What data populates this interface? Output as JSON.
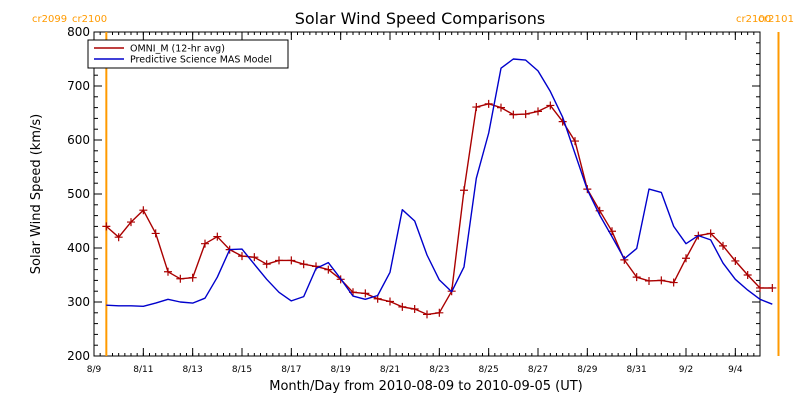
{
  "chart_data": {
    "type": "line",
    "title": "Solar Wind Speed Comparisons",
    "xlabel": "Month/Day from 2010-08-09 to 2010-09-05 (UT)",
    "ylabel": "Solar Wind Speed (km/s)",
    "x_domain": [
      "2010-08-09",
      "2010-09-05"
    ],
    "ylim": [
      200,
      800
    ],
    "y_ticks": [
      200,
      300,
      400,
      500,
      600,
      700,
      800
    ],
    "x_ticks": [
      {
        "date": "2010-08-09",
        "label": "8/9"
      },
      {
        "date": "2010-08-11",
        "label": "8/11"
      },
      {
        "date": "2010-08-13",
        "label": "8/13"
      },
      {
        "date": "2010-08-15",
        "label": "8/15"
      },
      {
        "date": "2010-08-17",
        "label": "8/17"
      },
      {
        "date": "2010-08-19",
        "label": "8/19"
      },
      {
        "date": "2010-08-21",
        "label": "8/21"
      },
      {
        "date": "2010-08-23",
        "label": "8/23"
      },
      {
        "date": "2010-08-25",
        "label": "8/25"
      },
      {
        "date": "2010-08-27",
        "label": "8/27"
      },
      {
        "date": "2010-08-29",
        "label": "8/29"
      },
      {
        "date": "2010-08-31",
        "label": "8/31"
      },
      {
        "date": "2010-09-02",
        "label": "9/2"
      },
      {
        "date": "2010-09-04",
        "label": "9/4"
      }
    ],
    "carrington_markers": [
      {
        "date": "2010-08-09 12:00",
        "label_left": "cr2099",
        "label_right": "cr2100",
        "color": "#ff9a00"
      },
      {
        "date": "2010-09-05 18:00",
        "label_left": "cr2100",
        "label_right": "cr2101",
        "color": "#ff9a00"
      }
    ],
    "legend": {
      "position": "top-left"
    },
    "series": [
      {
        "name": "OMNI_M (12-hr avg)",
        "color": "#aa0000",
        "marker": "plus",
        "points": [
          [
            "2010-08-09 12:00",
            440
          ],
          [
            "2010-08-10 00:00",
            420
          ],
          [
            "2010-08-10 12:00",
            448
          ],
          [
            "2010-08-11 00:00",
            470
          ],
          [
            "2010-08-11 12:00",
            427
          ],
          [
            "2010-08-12 00:00",
            356
          ],
          [
            "2010-08-12 12:00",
            343
          ],
          [
            "2010-08-13 00:00",
            345
          ],
          [
            "2010-08-13 12:00",
            408
          ],
          [
            "2010-08-14 00:00",
            421
          ],
          [
            "2010-08-14 12:00",
            397
          ],
          [
            "2010-08-15 00:00",
            385
          ],
          [
            "2010-08-15 12:00",
            383
          ],
          [
            "2010-08-16 00:00",
            370
          ],
          [
            "2010-08-16 12:00",
            377
          ],
          [
            "2010-08-17 00:00",
            377
          ],
          [
            "2010-08-17 12:00",
            370
          ],
          [
            "2010-08-18 00:00",
            366
          ],
          [
            "2010-08-18 12:00",
            360
          ],
          [
            "2010-08-19 00:00",
            342
          ],
          [
            "2010-08-19 12:00",
            318
          ],
          [
            "2010-08-20 00:00",
            316
          ],
          [
            "2010-08-20 12:00",
            306
          ],
          [
            "2010-08-21 00:00",
            301
          ],
          [
            "2010-08-21 12:00",
            291
          ],
          [
            "2010-08-22 00:00",
            287
          ],
          [
            "2010-08-22 12:00",
            277
          ],
          [
            "2010-08-23 00:00",
            280
          ],
          [
            "2010-08-23 12:00",
            320
          ],
          [
            "2010-08-24 00:00",
            507
          ],
          [
            "2010-08-24 12:00",
            661
          ],
          [
            "2010-08-25 00:00",
            667
          ],
          [
            "2010-08-25 12:00",
            660
          ],
          [
            "2010-08-26 00:00",
            647
          ],
          [
            "2010-08-26 12:00",
            648
          ],
          [
            "2010-08-27 00:00",
            653
          ],
          [
            "2010-08-27 12:00",
            664
          ],
          [
            "2010-08-28 00:00",
            634
          ],
          [
            "2010-08-28 12:00",
            598
          ],
          [
            "2010-08-29 00:00",
            509
          ],
          [
            "2010-08-29 12:00",
            469
          ],
          [
            "2010-08-30 00:00",
            431
          ],
          [
            "2010-08-30 12:00",
            378
          ],
          [
            "2010-08-31 00:00",
            346
          ],
          [
            "2010-08-31 12:00",
            339
          ],
          [
            "2010-09-01 00:00",
            340
          ],
          [
            "2010-09-01 12:00",
            336
          ],
          [
            "2010-09-02 00:00",
            381
          ],
          [
            "2010-09-02 12:00",
            423
          ],
          [
            "2010-09-03 00:00",
            427
          ],
          [
            "2010-09-03 12:00",
            404
          ],
          [
            "2010-09-04 00:00",
            376
          ],
          [
            "2010-09-04 12:00",
            350
          ],
          [
            "2010-09-05 00:00",
            326
          ],
          [
            "2010-09-05 12:00",
            326
          ]
        ]
      },
      {
        "name": "Predictive Science MAS Model",
        "color": "#0000cc",
        "marker": "none",
        "points": [
          [
            "2010-08-09 12:00",
            294
          ],
          [
            "2010-08-10 00:00",
            293
          ],
          [
            "2010-08-10 12:00",
            293
          ],
          [
            "2010-08-11 00:00",
            292
          ],
          [
            "2010-08-11 12:00",
            298
          ],
          [
            "2010-08-12 00:00",
            305
          ],
          [
            "2010-08-12 12:00",
            300
          ],
          [
            "2010-08-13 00:00",
            298
          ],
          [
            "2010-08-13 12:00",
            307
          ],
          [
            "2010-08-14 00:00",
            346
          ],
          [
            "2010-08-14 12:00",
            397
          ],
          [
            "2010-08-15 00:00",
            398
          ],
          [
            "2010-08-15 12:00",
            370
          ],
          [
            "2010-08-16 00:00",
            342
          ],
          [
            "2010-08-16 12:00",
            318
          ],
          [
            "2010-08-17 00:00",
            302
          ],
          [
            "2010-08-17 12:00",
            310
          ],
          [
            "2010-08-18 00:00",
            362
          ],
          [
            "2010-08-18 12:00",
            373
          ],
          [
            "2010-08-19 00:00",
            343
          ],
          [
            "2010-08-19 12:00",
            311
          ],
          [
            "2010-08-20 00:00",
            305
          ],
          [
            "2010-08-20 12:00",
            312
          ],
          [
            "2010-08-21 00:00",
            355
          ],
          [
            "2010-08-21 12:00",
            471
          ],
          [
            "2010-08-22 00:00",
            450
          ],
          [
            "2010-08-22 12:00",
            387
          ],
          [
            "2010-08-23 00:00",
            341
          ],
          [
            "2010-08-23 12:00",
            319
          ],
          [
            "2010-08-24 00:00",
            365
          ],
          [
            "2010-08-24 12:00",
            529
          ],
          [
            "2010-08-25 00:00",
            613
          ],
          [
            "2010-08-25 12:00",
            733
          ],
          [
            "2010-08-26 00:00",
            750
          ],
          [
            "2010-08-26 12:00",
            748
          ],
          [
            "2010-08-27 00:00",
            728
          ],
          [
            "2010-08-27 12:00",
            690
          ],
          [
            "2010-08-28 00:00",
            642
          ],
          [
            "2010-08-28 12:00",
            575
          ],
          [
            "2010-08-29 00:00",
            508
          ],
          [
            "2010-08-29 12:00",
            461
          ],
          [
            "2010-08-30 00:00",
            421
          ],
          [
            "2010-08-30 12:00",
            380
          ],
          [
            "2010-08-31 00:00",
            399
          ],
          [
            "2010-08-31 12:00",
            509
          ],
          [
            "2010-09-01 00:00",
            503
          ],
          [
            "2010-09-01 12:00",
            440
          ],
          [
            "2010-09-02 00:00",
            408
          ],
          [
            "2010-09-02 12:00",
            423
          ],
          [
            "2010-09-03 00:00",
            415
          ],
          [
            "2010-09-03 12:00",
            372
          ],
          [
            "2010-09-04 00:00",
            342
          ],
          [
            "2010-09-04 12:00",
            322
          ],
          [
            "2010-09-05 00:00",
            305
          ],
          [
            "2010-09-05 12:00",
            296
          ]
        ]
      }
    ]
  }
}
